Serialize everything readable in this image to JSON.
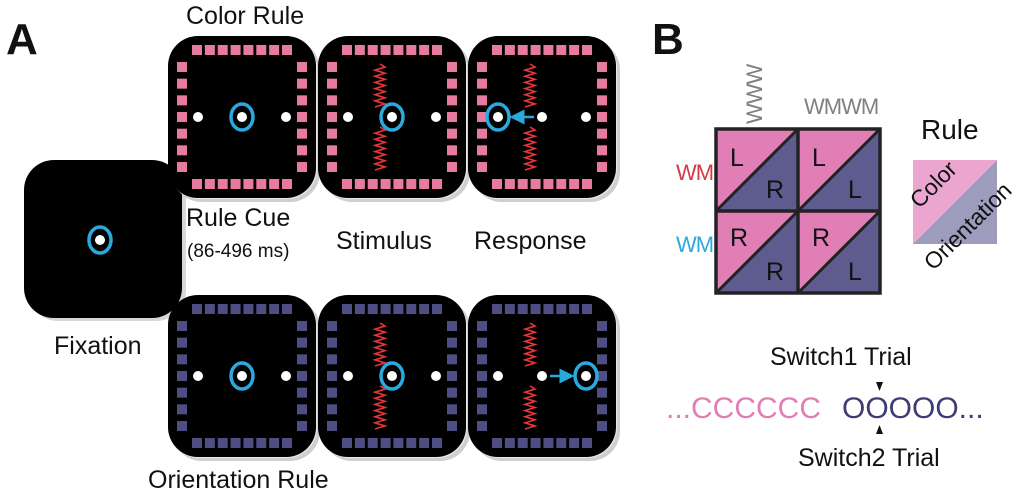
{
  "panels": {
    "a": "A",
    "b": "B"
  },
  "panel_a": {
    "color_rule": "Color Rule",
    "orientation_rule": "Orientation Rule",
    "fixation": "Fixation",
    "rule_cue": "Rule Cue",
    "rule_cue_timing": "(86-496 ms)",
    "stimulus": "Stimulus",
    "response": "Response",
    "colors": {
      "pink": "#E8799F",
      "purple": "#4E4D84",
      "cyan": "#2BA8DC",
      "red": "#E8353A",
      "screen": "#000000"
    }
  },
  "panel_b": {
    "top_label_vertical": "WWW",
    "top_label_horizontal": "WMWM",
    "row_label_red": "WM",
    "row_label_cyan": "WM",
    "cells": [
      {
        "upper": "L",
        "lower": "R"
      },
      {
        "upper": "L",
        "lower": "L"
      },
      {
        "upper": "R",
        "lower": "R"
      },
      {
        "upper": "R",
        "lower": "L"
      }
    ],
    "rule_title": "Rule",
    "rule_color": "Color",
    "rule_orientation": "Orientation",
    "switch1": "Switch1 Trial",
    "switch2": "Switch2 Trial",
    "sequence_color": "...CCCCCC",
    "sequence_orientation": "OOOOO...",
    "colors": {
      "pink": "#E27EB6",
      "purple": "#5E5B8F",
      "pink_light": "#EBA6D0",
      "purple_light": "#9E9CBD",
      "gray": "#808080"
    }
  }
}
